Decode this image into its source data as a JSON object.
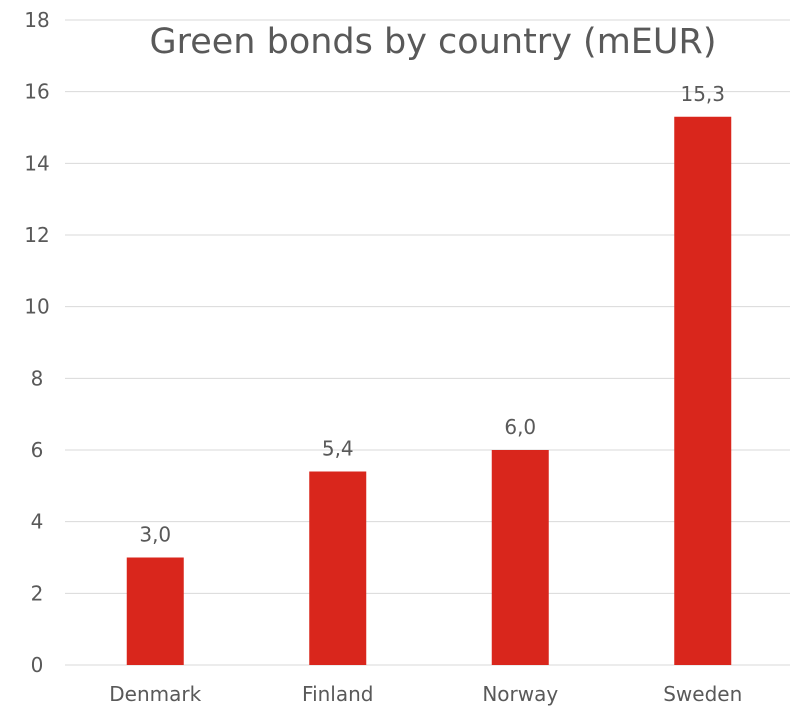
{
  "chart_data": {
    "type": "bar",
    "title": "Green bonds by country (mEUR)",
    "xlabel": "",
    "ylabel": "",
    "categories": [
      "Denmark",
      "Finland",
      "Norway",
      "Sweden"
    ],
    "values": [
      3.0,
      5.4,
      6.0,
      15.3
    ],
    "data_labels": [
      "3,0",
      "5,4",
      "6,0",
      "15,3"
    ],
    "ylim": [
      0,
      18
    ],
    "y_ticks": [
      0,
      2,
      4,
      6,
      8,
      10,
      12,
      14,
      16,
      18
    ],
    "y_tick_labels": [
      "0",
      "2",
      "4",
      "6",
      "8",
      "10",
      "12",
      "14",
      "16",
      "18"
    ],
    "grid": true,
    "legend": "none",
    "bar_color": "#d9261c",
    "grid_color": "#d9d9d9",
    "text_color": "#595959"
  }
}
